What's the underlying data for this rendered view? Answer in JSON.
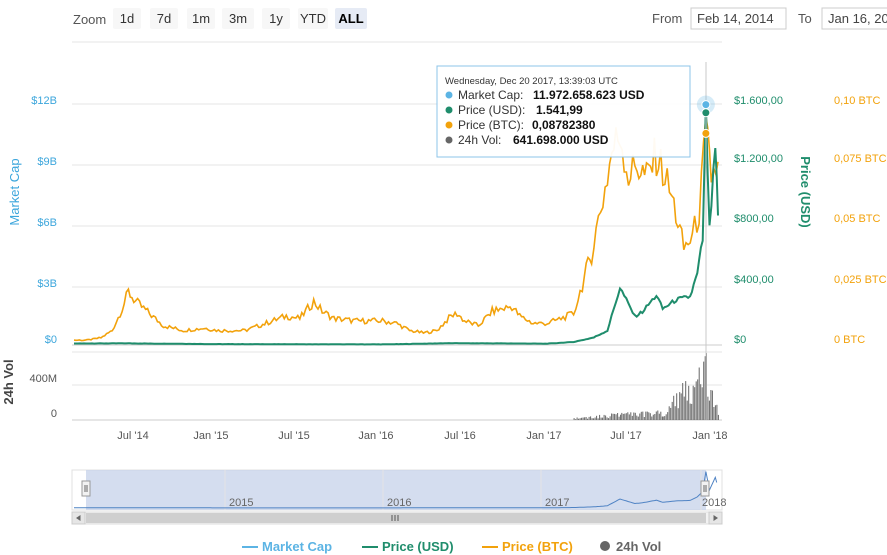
{
  "rangeSelector": {
    "zoom_label": "Zoom",
    "buttons": [
      "1d",
      "7d",
      "1m",
      "3m",
      "1y",
      "YTD",
      "ALL"
    ],
    "active": "ALL",
    "from_label": "From",
    "from_value": "Feb 14, 2014",
    "to_label": "To",
    "to_value": "Jan 16, 20"
  },
  "tooltip": {
    "date": "Wednesday, Dec 20 2017, 13:39:03 UTC",
    "rows": [
      {
        "label": "Market Cap:",
        "value": "11.972.658.623 USD",
        "color": "#5cb4e4"
      },
      {
        "label": "Price (USD):",
        "value": "1.541,99",
        "color": "#1f8d6c"
      },
      {
        "label": "Price (BTC):",
        "value": "0,08782380",
        "color": "#f2a20c"
      },
      {
        "label": "24h Vol:",
        "value": "641.698.000 USD",
        "color": "#666666"
      }
    ]
  },
  "axes": {
    "left_title": "Market Cap",
    "left_ticks": [
      "$12B",
      "$9B",
      "$6B",
      "$3B",
      "$0"
    ],
    "usd_title": "Price (USD)",
    "usd_ticks": [
      "$1.600,00",
      "$1.200,00",
      "$800,00",
      "$400,00",
      "$0"
    ],
    "btc_ticks": [
      "0,10 BTC",
      "0,075 BTC",
      "0,05 BTC",
      "0,025 BTC",
      "0 BTC"
    ],
    "vol_title": "24h Vol",
    "vol_ticks": [
      "400M",
      "0"
    ],
    "x_ticks": [
      "Jul '14",
      "Jan '15",
      "Jul '15",
      "Jan '16",
      "Jul '16",
      "Jan '17",
      "Jul '17",
      "Jan '18"
    ]
  },
  "navigator": {
    "year_labels": [
      "2015",
      "2016",
      "2017",
      "2018"
    ]
  },
  "legend": [
    {
      "label": "Market Cap",
      "color": "#5cb4e4",
      "kind": "line"
    },
    {
      "label": "Price (USD)",
      "color": "#1f8d6c",
      "kind": "line"
    },
    {
      "label": "Price (BTC)",
      "color": "#f2a20c",
      "kind": "line"
    },
    {
      "label": "24h Vol",
      "color": "#666666",
      "kind": "dot"
    }
  ],
  "colors": {
    "market_cap": "#5cb4e4",
    "price_usd": "#1f8d6c",
    "price_btc": "#f2a20c",
    "volume": "#666666"
  },
  "chart_data": {
    "type": "line",
    "x_range": [
      "2014-02-14",
      "2018-01-16"
    ],
    "usd_ylim": [
      0,
      1600
    ],
    "btc_ylim": [
      0,
      0.1
    ],
    "vol_ylim": [
      0,
      800
    ],
    "series": [
      {
        "name": "Price (BTC)",
        "axis": "btc",
        "points": [
          [
            "2014-02-14",
            0.002
          ],
          [
            "2014-03-15",
            0.002
          ],
          [
            "2014-04-15",
            0.003
          ],
          [
            "2014-05-10",
            0.006
          ],
          [
            "2014-06-01",
            0.015
          ],
          [
            "2014-06-15",
            0.022
          ],
          [
            "2014-07-01",
            0.018
          ],
          [
            "2014-08-01",
            0.013
          ],
          [
            "2014-09-01",
            0.008
          ],
          [
            "2014-10-15",
            0.006
          ],
          [
            "2014-12-01",
            0.007
          ],
          [
            "2015-01-01",
            0.006
          ],
          [
            "2015-02-01",
            0.006
          ],
          [
            "2015-03-01",
            0.006
          ],
          [
            "2015-04-01",
            0.008
          ],
          [
            "2015-05-01",
            0.01
          ],
          [
            "2015-06-01",
            0.012
          ],
          [
            "2015-07-01",
            0.011
          ],
          [
            "2015-08-01",
            0.018
          ],
          [
            "2015-08-20",
            0.014
          ],
          [
            "2015-09-15",
            0.011
          ],
          [
            "2015-11-01",
            0.01
          ],
          [
            "2015-12-01",
            0.01
          ],
          [
            "2016-01-01",
            0.01
          ],
          [
            "2016-02-01",
            0.009
          ],
          [
            "2016-03-01",
            0.006
          ],
          [
            "2016-04-01",
            0.005
          ],
          [
            "2016-05-01",
            0.006
          ],
          [
            "2016-06-01",
            0.012
          ],
          [
            "2016-06-15",
            0.013
          ],
          [
            "2016-07-01",
            0.01
          ],
          [
            "2016-08-01",
            0.008
          ],
          [
            "2016-09-01",
            0.014
          ],
          [
            "2016-10-15",
            0.016
          ],
          [
            "2016-11-01",
            0.012
          ],
          [
            "2016-12-01",
            0.009
          ],
          [
            "2017-01-01",
            0.009
          ],
          [
            "2017-02-01",
            0.011
          ],
          [
            "2017-03-01",
            0.013
          ],
          [
            "2017-03-25",
            0.028
          ],
          [
            "2017-04-10",
            0.038
          ],
          [
            "2017-04-25",
            0.052
          ],
          [
            "2017-05-10",
            0.065
          ],
          [
            "2017-05-25",
            0.08
          ],
          [
            "2017-06-12",
            0.088
          ],
          [
            "2017-07-01",
            0.07
          ],
          [
            "2017-07-20",
            0.075
          ],
          [
            "2017-08-10",
            0.069
          ],
          [
            "2017-09-01",
            0.079
          ],
          [
            "2017-09-20",
            0.07
          ],
          [
            "2017-10-10",
            0.058
          ],
          [
            "2017-11-01",
            0.04
          ],
          [
            "2017-11-20",
            0.045
          ],
          [
            "2017-12-05",
            0.055
          ],
          [
            "2017-12-20",
            0.0878
          ],
          [
            "2018-01-01",
            0.07
          ],
          [
            "2018-01-16",
            0.076
          ]
        ]
      },
      {
        "name": "Price (USD)",
        "axis": "usd",
        "points": [
          [
            "2014-02-14",
            10
          ],
          [
            "2014-06-01",
            11
          ],
          [
            "2015-01-01",
            6
          ],
          [
            "2016-01-01",
            4
          ],
          [
            "2016-06-01",
            12
          ],
          [
            "2017-01-01",
            9
          ],
          [
            "2017-03-01",
            20
          ],
          [
            "2017-04-15",
            50
          ],
          [
            "2017-05-15",
            95
          ],
          [
            "2017-06-12",
            380
          ],
          [
            "2017-07-15",
            190
          ],
          [
            "2017-08-01",
            220
          ],
          [
            "2017-09-01",
            330
          ],
          [
            "2017-09-15",
            240
          ],
          [
            "2017-10-15",
            300
          ],
          [
            "2017-11-15",
            320
          ],
          [
            "2017-12-01",
            470
          ],
          [
            "2017-12-13",
            700
          ],
          [
            "2017-12-20",
            1541.99
          ],
          [
            "2017-12-28",
            760
          ],
          [
            "2018-01-10",
            1300
          ],
          [
            "2018-01-16",
            860
          ]
        ]
      },
      {
        "name": "Market Cap",
        "axis": "left",
        "points": [
          [
            "2017-12-20",
            11.97
          ]
        ]
      },
      {
        "name": "24h Vol",
        "axis": "vol",
        "points": [
          [
            "2017-03-01",
            20
          ],
          [
            "2017-06-15",
            70
          ],
          [
            "2017-09-15",
            90
          ],
          [
            "2017-12-20",
            641.7
          ],
          [
            "2018-01-16",
            110
          ]
        ]
      }
    ]
  }
}
